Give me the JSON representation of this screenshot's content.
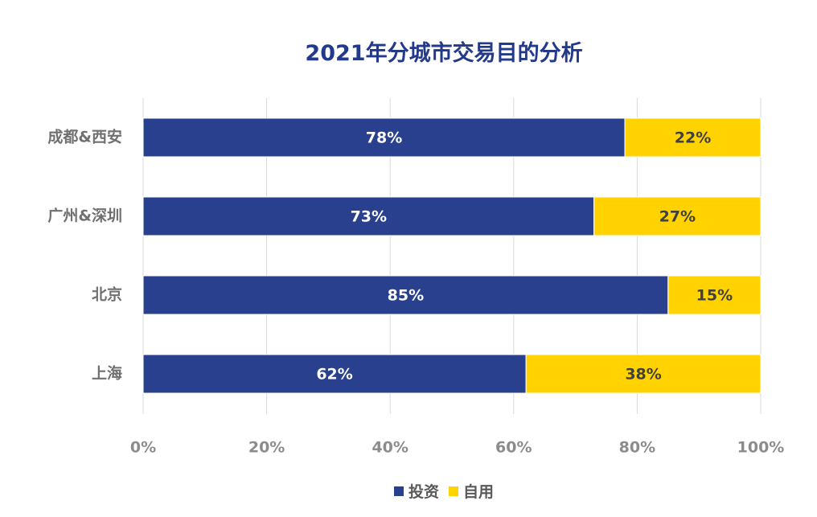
{
  "chart_data": {
    "type": "bar",
    "orientation": "horizontal",
    "stacked": true,
    "title": "2021年分城市交易目的分析",
    "categories": [
      "成都&西安",
      "广州&深圳",
      "北京",
      "上海"
    ],
    "series": [
      {
        "name": "投资",
        "values": [
          78,
          73,
          85,
          62
        ],
        "color": "#28408E",
        "label_color": "#FFFFFF"
      },
      {
        "name": "自用",
        "values": [
          22,
          27,
          15,
          38
        ],
        "color": "#FFD200",
        "label_color": "#404040"
      }
    ],
    "value_suffix": "%",
    "xlim": [
      0,
      100
    ],
    "xticks": [
      "0%",
      "20%",
      "40%",
      "60%",
      "80%",
      "100%"
    ],
    "grid": true,
    "legend_position": "bottom"
  }
}
